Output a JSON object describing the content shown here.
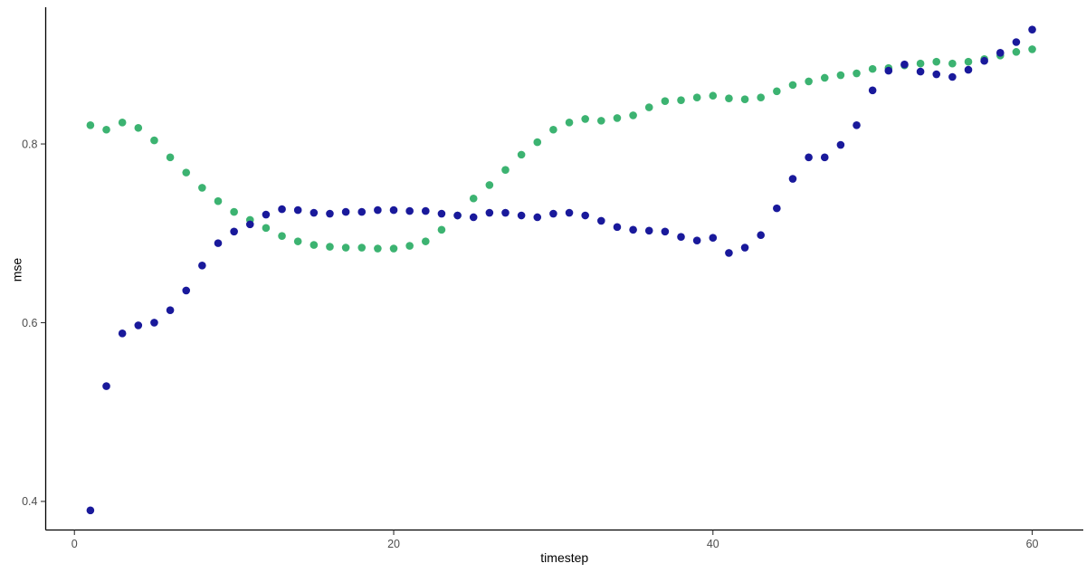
{
  "chart_data": {
    "type": "scatter",
    "title": "",
    "xlabel": "timestep",
    "ylabel": "mse",
    "grid": false,
    "legend_position": "none",
    "background_color": "#ffffff",
    "axis_line_color": "#000000",
    "tick_label_color": "#4d4d4d",
    "xlim": [
      -1.8,
      63.2
    ],
    "ylim": [
      0.368,
      0.953
    ],
    "x_ticks": [
      0,
      20,
      40,
      60
    ],
    "x_tick_labels": [
      "0",
      "20",
      "40",
      "60"
    ],
    "y_ticks": [
      0.4,
      0.6,
      0.8
    ],
    "y_tick_labels": [
      "0.4",
      "0.6",
      "0.8"
    ],
    "point_radius": 4.3,
    "series": [
      {
        "name": "green-series",
        "color": "#3CB371",
        "x": [
          1,
          2,
          3,
          4,
          5,
          6,
          7,
          8,
          9,
          10,
          11,
          12,
          13,
          14,
          15,
          16,
          17,
          18,
          19,
          20,
          21,
          22,
          23,
          24,
          25,
          26,
          27,
          28,
          29,
          30,
          31,
          32,
          33,
          34,
          35,
          36,
          37,
          38,
          39,
          40,
          41,
          42,
          43,
          44,
          45,
          46,
          47,
          48,
          49,
          50,
          51,
          52,
          53,
          54,
          55,
          56,
          57,
          58,
          59,
          60
        ],
        "values": [
          0.821,
          0.816,
          0.824,
          0.818,
          0.804,
          0.785,
          0.768,
          0.751,
          0.736,
          0.724,
          0.715,
          0.706,
          0.697,
          0.691,
          0.687,
          0.685,
          0.684,
          0.684,
          0.683,
          0.683,
          0.686,
          0.691,
          0.704,
          0.72,
          0.739,
          0.754,
          0.771,
          0.788,
          0.802,
          0.816,
          0.824,
          0.828,
          0.826,
          0.829,
          0.832,
          0.841,
          0.848,
          0.849,
          0.852,
          0.854,
          0.851,
          0.85,
          0.852,
          0.859,
          0.866,
          0.87,
          0.874,
          0.877,
          0.879,
          0.884,
          0.885,
          0.888,
          0.89,
          0.892,
          0.89,
          0.892,
          0.895,
          0.899,
          0.903,
          0.906
        ]
      },
      {
        "name": "navy-series",
        "color": "#19199B",
        "x": [
          1,
          2,
          3,
          4,
          5,
          6,
          7,
          8,
          9,
          10,
          11,
          12,
          13,
          14,
          15,
          16,
          17,
          18,
          19,
          20,
          21,
          22,
          23,
          24,
          25,
          26,
          27,
          28,
          29,
          30,
          31,
          32,
          33,
          34,
          35,
          36,
          37,
          38,
          39,
          40,
          41,
          42,
          43,
          44,
          45,
          46,
          47,
          48,
          49,
          50,
          51,
          52,
          53,
          54,
          55,
          56,
          57,
          58,
          59,
          60
        ],
        "values": [
          0.39,
          0.529,
          0.588,
          0.597,
          0.6,
          0.614,
          0.636,
          0.664,
          0.689,
          0.702,
          0.71,
          0.721,
          0.727,
          0.726,
          0.723,
          0.722,
          0.724,
          0.724,
          0.726,
          0.726,
          0.725,
          0.725,
          0.722,
          0.72,
          0.718,
          0.723,
          0.723,
          0.72,
          0.718,
          0.722,
          0.723,
          0.72,
          0.714,
          0.707,
          0.704,
          0.703,
          0.702,
          0.696,
          0.692,
          0.695,
          0.678,
          0.684,
          0.698,
          0.728,
          0.761,
          0.785,
          0.785,
          0.799,
          0.821,
          0.86,
          0.882,
          0.889,
          0.881,
          0.878,
          0.875,
          0.883,
          0.893,
          0.902,
          0.914,
          0.928
        ]
      }
    ]
  }
}
